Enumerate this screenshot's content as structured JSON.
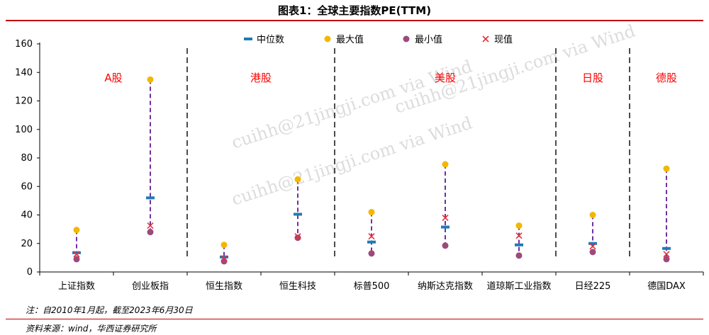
{
  "title": "图表1：全球主要指数PE(TTM)",
  "note": "注：自2010年1月起，截至2023年6月30日",
  "source": "资料来源：wind，华西证券研究所",
  "watermark": "cuihh@21jingji.com via Wind",
  "colors": {
    "median": "#1f7bb6",
    "max": "#f2b800",
    "min": "#9c4a7a",
    "current": "#e8303a",
    "range_line": "#7030a0",
    "region_label": "#ff0000",
    "title_rule": "#c00000"
  },
  "chart_data": {
    "type": "scatter",
    "title": "全球主要指数PE(TTM)",
    "ylim": [
      0,
      160
    ],
    "yticks": [
      0,
      20,
      40,
      60,
      80,
      100,
      120,
      140,
      160
    ],
    "categories": [
      "上证指数",
      "创业板指",
      "恒生指数",
      "恒生科技",
      "标普500",
      "纳斯达克指数",
      "道琼斯工业指数",
      "日经225",
      "德国DAX"
    ],
    "series": [
      {
        "name": "中位数",
        "marker": "dash",
        "values": [
          13.5,
          52,
          10.5,
          40.5,
          21,
          31.5,
          19,
          20,
          16.5
        ]
      },
      {
        "name": "最大值",
        "marker": "circle",
        "values": [
          29.5,
          135,
          19,
          65,
          42,
          75.5,
          32.5,
          40,
          72.5
        ]
      },
      {
        "name": "最小值",
        "marker": "circle",
        "values": [
          9,
          28,
          7.5,
          24,
          13,
          18.5,
          11.5,
          14,
          9
        ]
      },
      {
        "name": "现值",
        "marker": "x",
        "values": [
          12.5,
          32.5,
          9.5,
          25,
          25,
          38,
          25.5,
          18,
          12.5
        ]
      }
    ],
    "regions": [
      {
        "label": "A股",
        "from": 0,
        "to": 1
      },
      {
        "label": "港股",
        "from": 2,
        "to": 3
      },
      {
        "label": "美股",
        "from": 4,
        "to": 6
      },
      {
        "label": "日股",
        "from": 7,
        "to": 7
      },
      {
        "label": "德股",
        "from": 8,
        "to": 8
      }
    ],
    "legend_position": "top-center",
    "grid": false
  }
}
